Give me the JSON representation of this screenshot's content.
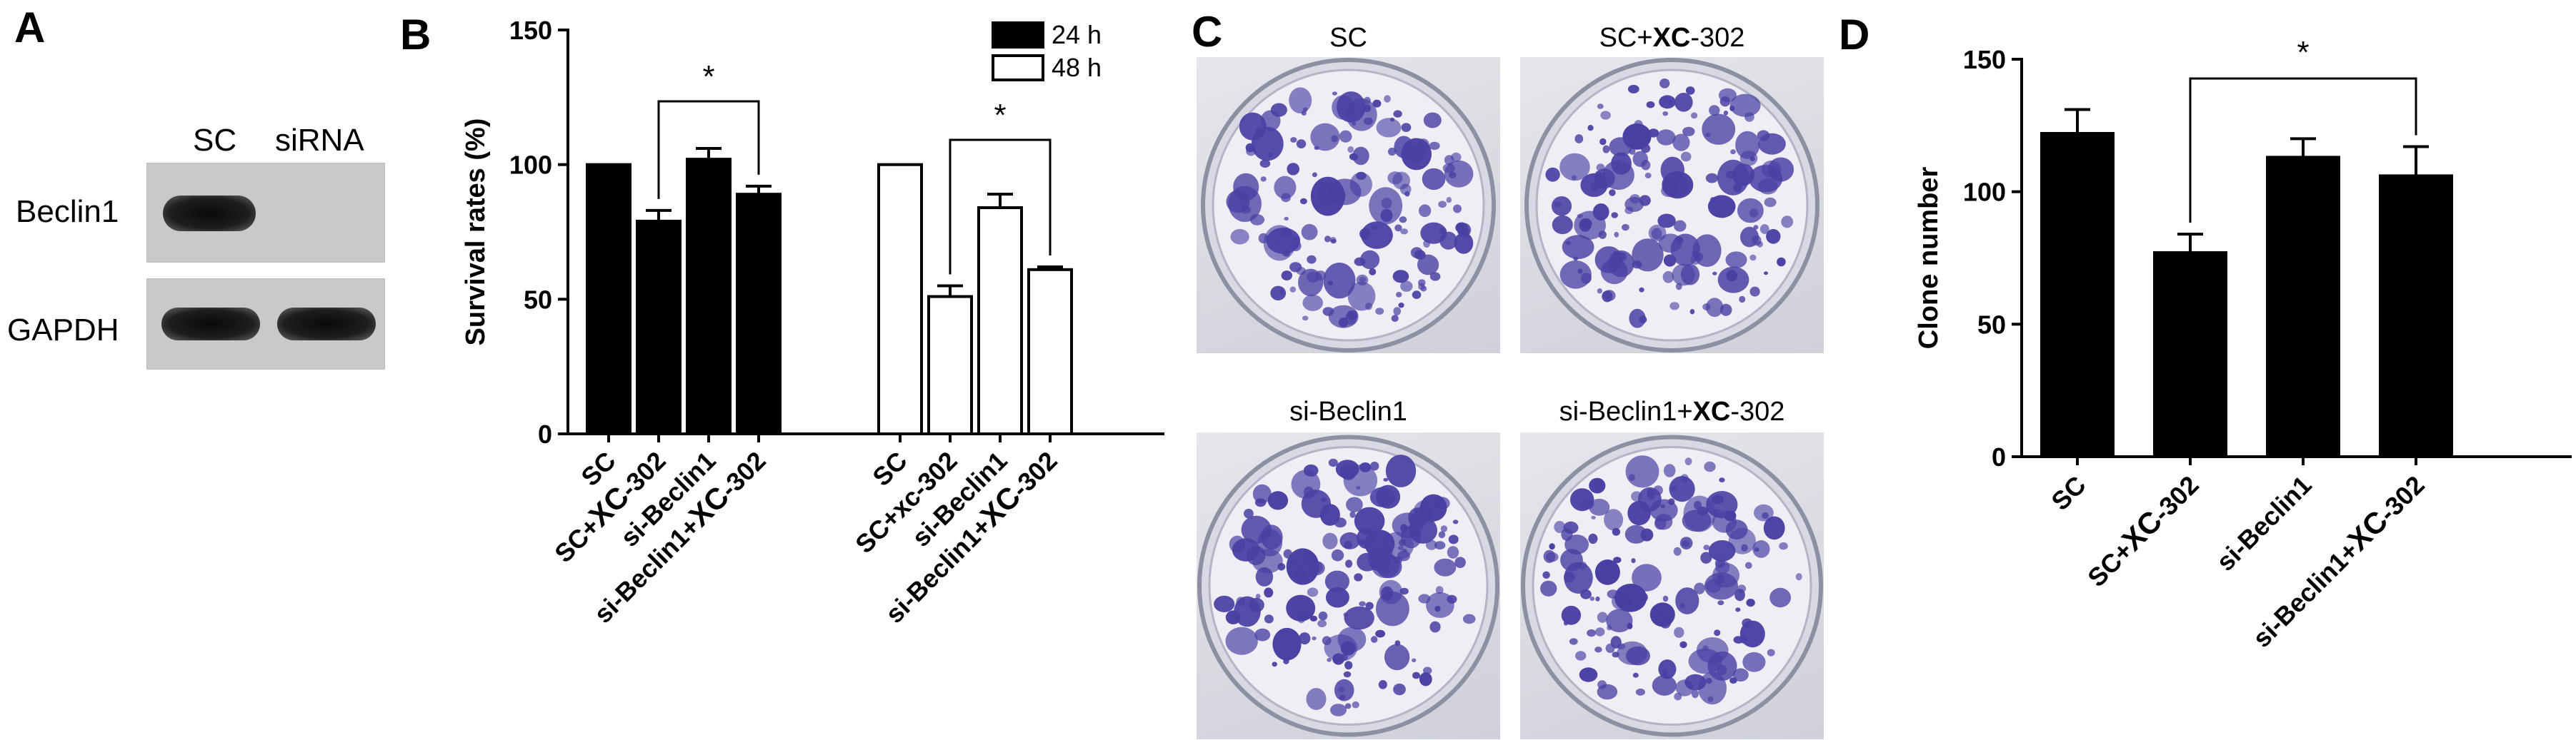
{
  "panels": {
    "a": "A",
    "b": "B",
    "c": "C",
    "d": "D"
  },
  "blot": {
    "col_labels": [
      "SC",
      "siRNA"
    ],
    "row_labels": [
      "Beclin1",
      "GAPDH"
    ]
  },
  "dishes": {
    "labels": [
      {
        "plain": "SC",
        "bold": "",
        "tail": ""
      },
      {
        "plain": "SC+",
        "bold": "XC",
        "tail": "-302"
      },
      {
        "plain": "si-Beclin1",
        "bold": "",
        "tail": ""
      },
      {
        "plain": "si-Beclin1+",
        "bold": "XC",
        "tail": "-302"
      }
    ]
  },
  "colors": {
    "bar_24h": "#000000",
    "bar_48h": "#ffffff",
    "stain": "#4a3fa3"
  },
  "chart_data": [
    {
      "type": "bar",
      "ylabel": "Survival rates (%)",
      "ylim": [
        0,
        150
      ],
      "yticks": [
        0,
        50,
        100,
        150
      ],
      "legend": {
        "position": "top-right"
      },
      "series": [
        {
          "name": "24 h",
          "categories": [
            "SC",
            "SC+XC-302",
            "si-Beclin1",
            "si-Beclin1+XC-302"
          ],
          "values": [
            100,
            79,
            102,
            89
          ],
          "errors": [
            0,
            4,
            4,
            3
          ]
        },
        {
          "name": "48 h",
          "categories": [
            "SC",
            "SC+xc-302",
            "si-Beclin1",
            "si-Beclin1+XC-302"
          ],
          "values": [
            100,
            51,
            84,
            61
          ],
          "errors": [
            0,
            4,
            5,
            1
          ]
        }
      ],
      "significance": [
        {
          "from": "SC+XC-302",
          "to": "si-Beclin1+XC-302",
          "series": "24 h",
          "label": "*"
        },
        {
          "from": "SC+xc-302",
          "to": "si-Beclin1+XC-302",
          "series": "48 h",
          "label": "*"
        }
      ]
    },
    {
      "type": "bar",
      "ylabel": "Clone number",
      "ylim": [
        0,
        150
      ],
      "yticks": [
        0,
        50,
        100,
        150
      ],
      "categories": [
        "SC",
        "SC+XC-302",
        "si-Beclin1",
        "si-Beclin1+XC-302"
      ],
      "values": [
        122,
        77,
        113,
        106
      ],
      "errors": [
        9,
        7,
        7,
        11
      ],
      "significance": [
        {
          "from": "SC+XC-302",
          "to": "si-Beclin1+XC-302",
          "label": "*"
        }
      ]
    }
  ]
}
